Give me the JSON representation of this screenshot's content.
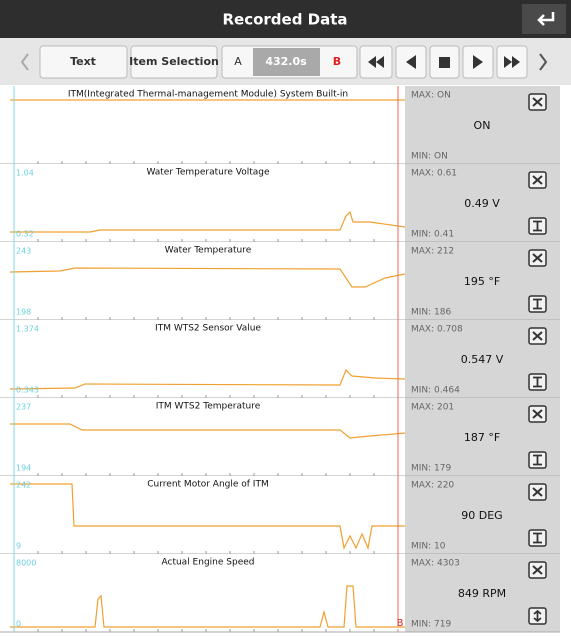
{
  "header": {
    "title": "Recorded Data"
  },
  "toolbar": {
    "text_button": "Text",
    "item_selection_button": "Item Selection",
    "cursor_a": "A",
    "time": "432.0s",
    "cursor_b": "B"
  },
  "rows": [
    {
      "title": "ITM(Integrated Thermal-management Module) System Built-in",
      "max": "MAX: ON",
      "value": "ON",
      "min": "MIN: ON"
    },
    {
      "title": "Water Temperature Voltage",
      "axis_max": "1.04",
      "axis_min": "0.32",
      "max": "MAX: 0.61",
      "value": "0.49 V",
      "min": "MIN: 0.41"
    },
    {
      "title": "Water Temperature",
      "axis_max": "243",
      "axis_min": "198",
      "max": "MAX: 212",
      "value": "195 °F",
      "min": "MIN: 186"
    },
    {
      "title": "ITM WTS2 Sensor Value",
      "axis_max": "1.374",
      "axis_min": "0.343",
      "max": "MAX: 0.708",
      "value": "0.547 V",
      "min": "MIN: 0.464"
    },
    {
      "title": "ITM WTS2 Temperature",
      "axis_max": "237",
      "axis_min": "194",
      "max": "MAX: 201",
      "value": "187 °F",
      "min": "MIN: 179"
    },
    {
      "title": "Current Motor Angle of ITM",
      "axis_max": "242",
      "axis_min": "9",
      "max": "MAX: 220",
      "value": "90 DEG",
      "min": "MIN: 10"
    },
    {
      "title": "Actual Engine Speed",
      "axis_max": "8000",
      "axis_min": "0",
      "max": "MAX: 4303",
      "value": "849 RPM",
      "min": "MIN: 719"
    }
  ]
}
